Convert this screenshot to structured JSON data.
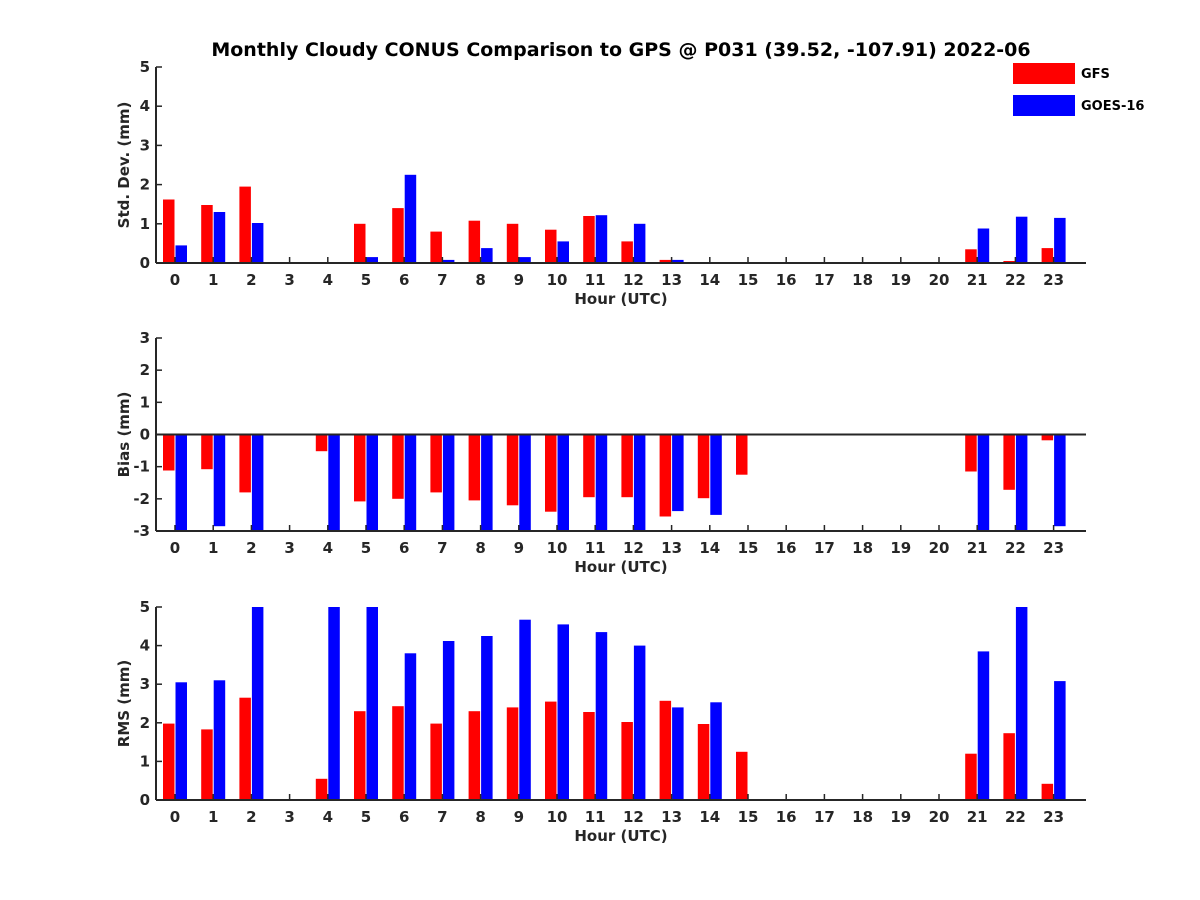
{
  "chart_data": [
    {
      "type": "bar",
      "title": "Monthly Cloudy CONUS Comparison to GPS @ P031 (39.52, -107.91) 2022-06",
      "xlabel": "Hour (UTC)",
      "ylabel": "Std. Dev. (mm)",
      "ylim": [
        0,
        5
      ],
      "yticks": [
        "0",
        "1",
        "2",
        "3",
        "4",
        "5"
      ],
      "categories": [
        "0",
        "1",
        "2",
        "3",
        "4",
        "5",
        "6",
        "7",
        "8",
        "9",
        "10",
        "11",
        "12",
        "13",
        "14",
        "15",
        "16",
        "17",
        "18",
        "19",
        "20",
        "21",
        "22",
        "23"
      ],
      "series": [
        {
          "name": "GFS",
          "color": "#ff0000",
          "values": [
            1.62,
            1.48,
            1.95,
            null,
            null,
            1.0,
            1.4,
            0.8,
            1.08,
            1.0,
            0.85,
            1.2,
            0.55,
            0.08,
            null,
            null,
            null,
            null,
            null,
            null,
            null,
            0.35,
            0.05,
            0.38
          ]
        },
        {
          "name": "GOES-16",
          "color": "#0000ff",
          "values": [
            0.45,
            1.3,
            1.02,
            null,
            null,
            0.15,
            2.25,
            0.08,
            0.38,
            0.15,
            0.55,
            1.22,
            1.0,
            0.08,
            null,
            null,
            null,
            null,
            null,
            null,
            null,
            0.88,
            1.18,
            1.15
          ]
        }
      ],
      "legend": "top-right"
    },
    {
      "type": "bar",
      "xlabel": "Hour (UTC)",
      "ylabel": "Bias (mm)",
      "ylim": [
        -3,
        3
      ],
      "yticks": [
        "-3",
        "-2",
        "-1",
        "0",
        "1",
        "2",
        "3"
      ],
      "categories": [
        "0",
        "1",
        "2",
        "3",
        "4",
        "5",
        "6",
        "7",
        "8",
        "9",
        "10",
        "11",
        "12",
        "13",
        "14",
        "15",
        "16",
        "17",
        "18",
        "19",
        "20",
        "21",
        "22",
        "23"
      ],
      "series": [
        {
          "name": "GFS",
          "color": "#ff0000",
          "values": [
            -1.12,
            -1.08,
            -1.8,
            null,
            -0.52,
            -2.08,
            -2.0,
            -1.8,
            -2.05,
            -2.2,
            -2.4,
            -1.95,
            -1.95,
            -2.55,
            -1.98,
            -1.25,
            null,
            null,
            null,
            null,
            null,
            -1.15,
            -1.72,
            -0.18
          ]
        },
        {
          "name": "GOES-16",
          "color": "#0000ff",
          "values": [
            -3.0,
            -2.85,
            -3.0,
            null,
            -3.0,
            -3.0,
            -3.0,
            -3.0,
            -3.0,
            -3.0,
            -3.0,
            -3.0,
            -3.0,
            -2.38,
            -2.5,
            null,
            null,
            null,
            null,
            null,
            null,
            -3.0,
            -3.0,
            -2.85
          ]
        }
      ]
    },
    {
      "type": "bar",
      "xlabel": "Hour (UTC)",
      "ylabel": "RMS (mm)",
      "ylim": [
        0,
        5
      ],
      "yticks": [
        "0",
        "1",
        "2",
        "3",
        "4",
        "5"
      ],
      "categories": [
        "0",
        "1",
        "2",
        "3",
        "4",
        "5",
        "6",
        "7",
        "8",
        "9",
        "10",
        "11",
        "12",
        "13",
        "14",
        "15",
        "16",
        "17",
        "18",
        "19",
        "20",
        "21",
        "22",
        "23"
      ],
      "series": [
        {
          "name": "GFS",
          "color": "#ff0000",
          "values": [
            1.98,
            1.83,
            2.65,
            null,
            0.55,
            2.3,
            2.43,
            1.98,
            2.3,
            2.4,
            2.55,
            2.28,
            2.02,
            2.57,
            1.97,
            1.25,
            null,
            null,
            null,
            null,
            null,
            1.2,
            1.73,
            0.42
          ]
        },
        {
          "name": "GOES-16",
          "color": "#0000ff",
          "values": [
            3.05,
            3.1,
            5.0,
            null,
            5.0,
            5.0,
            3.8,
            4.12,
            4.25,
            4.67,
            4.55,
            4.35,
            4.0,
            2.4,
            2.53,
            null,
            null,
            null,
            null,
            null,
            null,
            3.85,
            5.0,
            3.08
          ]
        }
      ]
    }
  ]
}
